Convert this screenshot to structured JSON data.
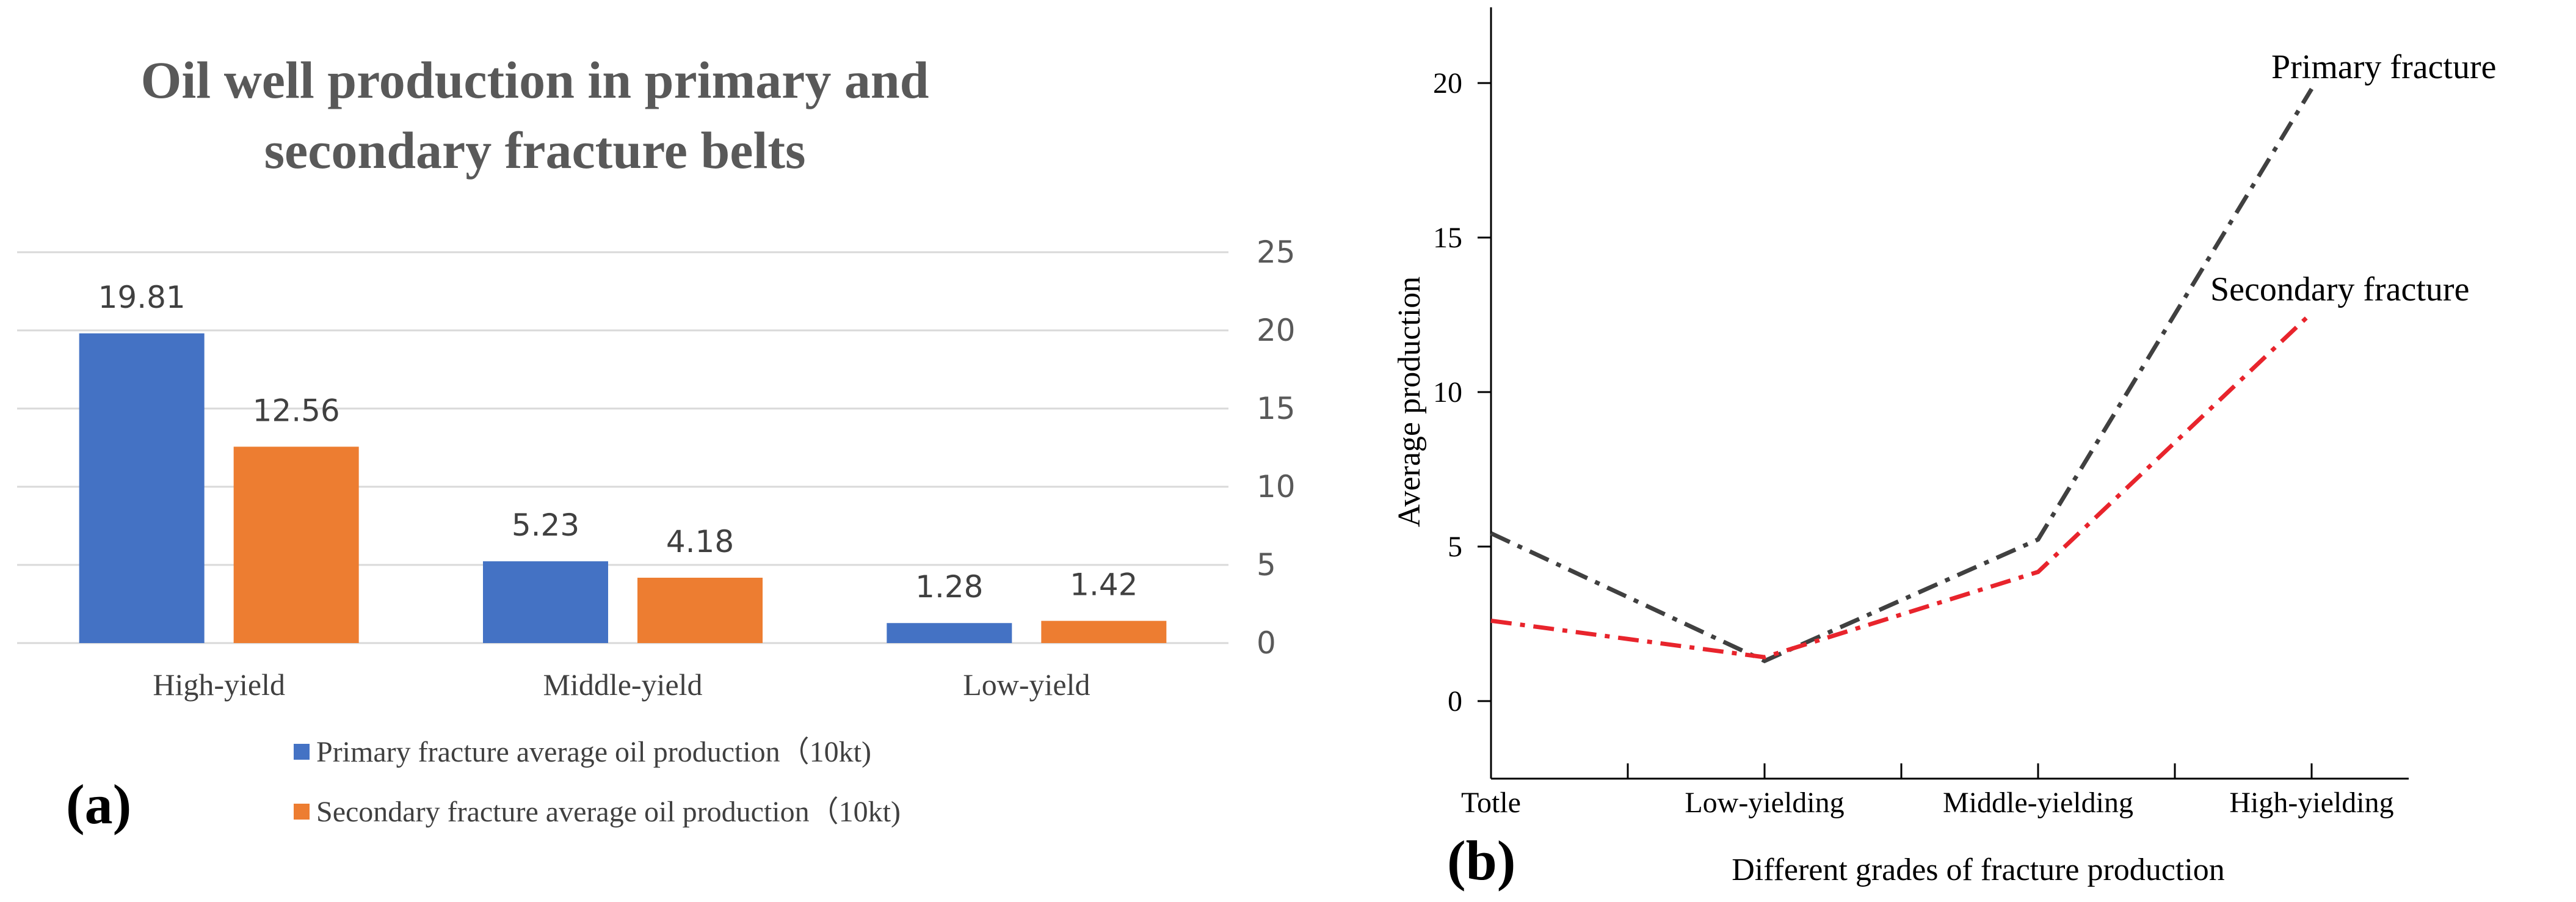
{
  "chart_data": [
    {
      "panel_label": "(a)",
      "type": "bar",
      "title_lines": [
        "Oil well production in primary and",
        "secondary fracture belts"
      ],
      "categories": [
        "High-yield",
        "Middle-yield",
        "Low-yield"
      ],
      "series": [
        {
          "name": "Primary fracture average oil production（10kt)",
          "color": "#4472C4",
          "values": [
            19.81,
            5.23,
            1.28
          ]
        },
        {
          "name": "Secondary fracture average oil production（10kt)",
          "color": "#ED7D31",
          "values": [
            12.56,
            4.18,
            1.42
          ]
        }
      ],
      "data_labels": [
        [
          "19.81",
          "5.23",
          "1.28"
        ],
        [
          "12.56",
          "4.18",
          "1.42"
        ]
      ],
      "y_axis_side": "right",
      "ylim": [
        0,
        25
      ],
      "yticks": [
        "0",
        "5",
        "10",
        "15",
        "20",
        "25"
      ],
      "grid": true,
      "legend_position": "bottom"
    },
    {
      "panel_label": "(b)",
      "type": "line",
      "x": [
        "Totle",
        "Low-yielding",
        "Middle-yielding",
        "High-yielding"
      ],
      "xlabel": "Different grades of fracture production",
      "ylabel": "Average production",
      "ylim": [
        -2.5,
        22.5
      ],
      "yticks": [
        "0",
        "5",
        "10",
        "15",
        "20"
      ],
      "series": [
        {
          "name": "Primary fracture",
          "color": "#404040",
          "values": [
            5.43,
            1.3,
            5.23,
            19.81
          ]
        },
        {
          "name": "Secondary fracture",
          "color": "#E8242C",
          "values": [
            2.6,
            1.42,
            4.18,
            12.56
          ]
        }
      ]
    }
  ]
}
